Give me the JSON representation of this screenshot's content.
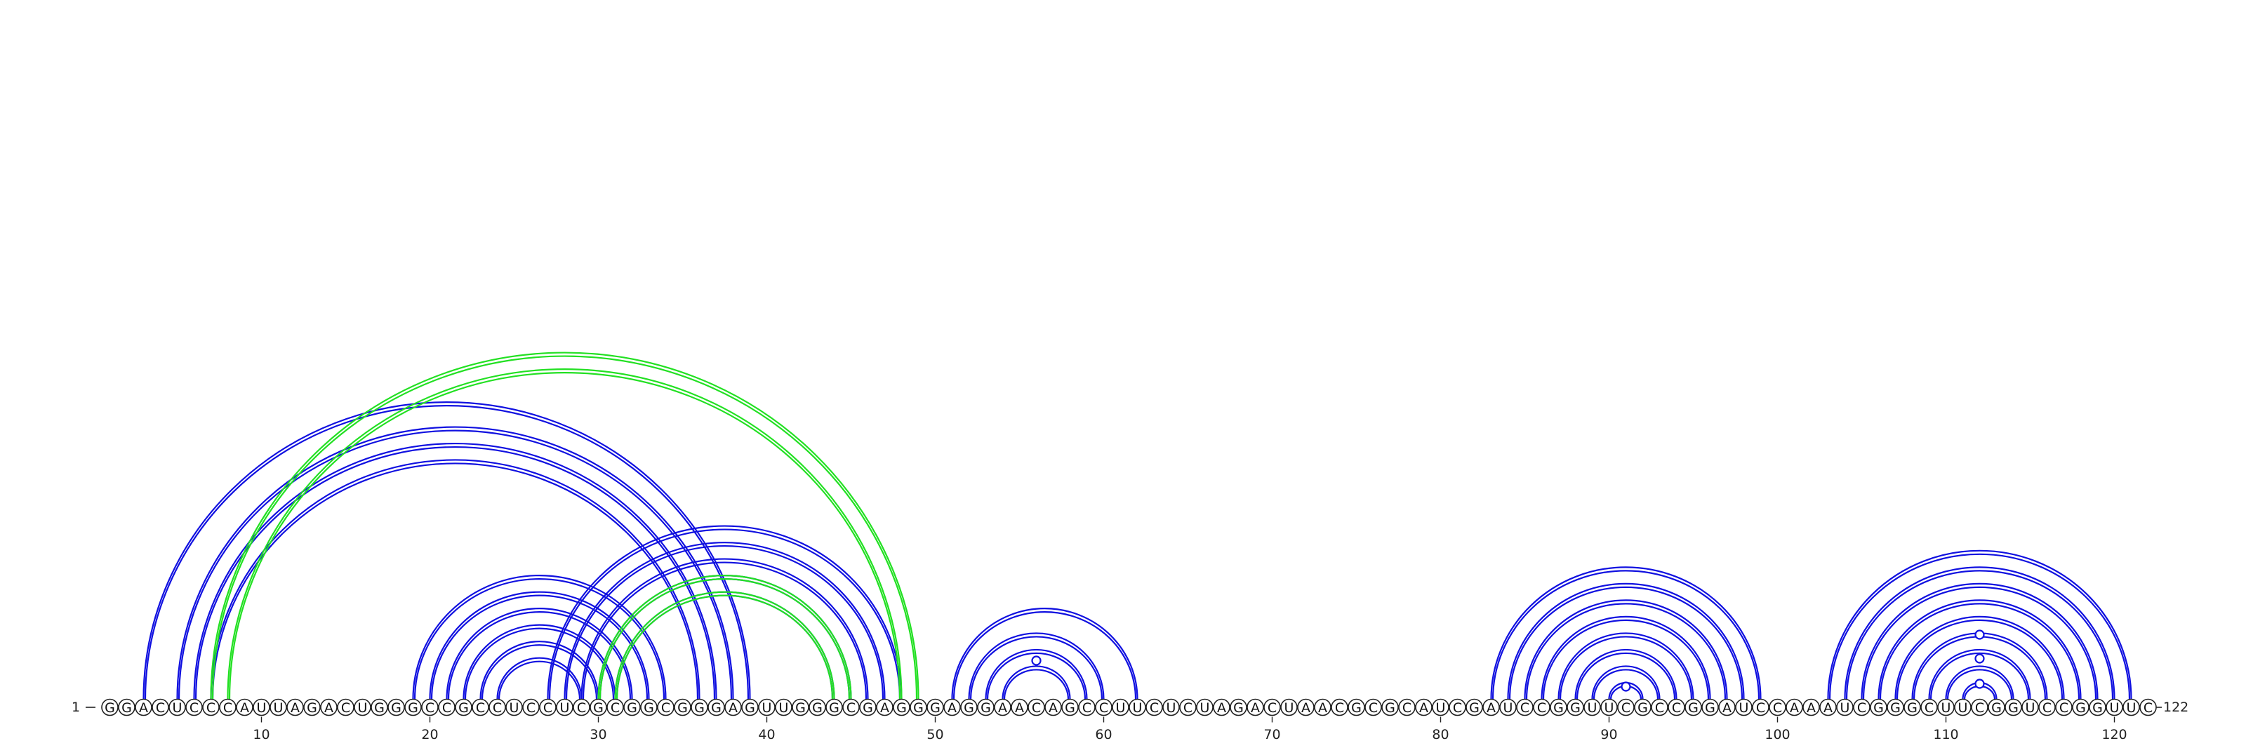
{
  "title": "RNA secondary structure arc diagram",
  "colors": {
    "primary_helix": "#1010e0",
    "alternative_helix": "#22e022",
    "nucleotide_outline": "#222222",
    "background": "#ffffff"
  },
  "chart_data": {
    "type": "arc-diagram",
    "sequence": "GGACUCCCAUUAGACUGGGCCGCCUCCUCGCGGCGGGAGUUGGGCGAGGGAGGAACAGCCUUCUCUAGACUAACGCGCAUCGAUCCGGUUCGCCGGAUCCAAAUCGGGCUUCGGUCCGGUUC",
    "length": 122,
    "start_label": "1",
    "end_label": "122",
    "axis_ticks": [
      10,
      20,
      30,
      40,
      50,
      60,
      70,
      80,
      90,
      100,
      110,
      120
    ],
    "primary_pairs": [
      [
        3,
        39
      ],
      [
        5,
        38
      ],
      [
        6,
        37
      ],
      [
        7,
        36
      ],
      [
        19,
        34
      ],
      [
        20,
        33
      ],
      [
        21,
        32
      ],
      [
        22,
        31
      ],
      [
        23,
        30
      ],
      [
        24,
        29
      ],
      [
        27,
        48
      ],
      [
        28,
        47
      ],
      [
        29,
        46
      ],
      [
        30,
        45
      ],
      [
        31,
        44
      ],
      [
        51,
        62
      ],
      [
        52,
        60
      ],
      [
        53,
        59
      ],
      [
        54,
        58
      ],
      [
        83,
        99
      ],
      [
        84,
        98
      ],
      [
        85,
        97
      ],
      [
        86,
        96
      ],
      [
        87,
        95
      ],
      [
        88,
        94
      ],
      [
        89,
        93
      ],
      [
        90,
        92
      ],
      [
        103,
        121
      ],
      [
        104,
        120
      ],
      [
        105,
        119
      ],
      [
        106,
        118
      ],
      [
        107,
        117
      ],
      [
        108,
        116
      ],
      [
        109,
        115
      ],
      [
        110,
        114
      ],
      [
        111,
        113
      ]
    ],
    "alternative_pairs": [
      [
        7,
        49
      ],
      [
        8,
        48
      ],
      [
        30,
        45
      ],
      [
        31,
        44
      ]
    ],
    "loop_markers": [
      56,
      91,
      112,
      112,
      112
    ],
    "marker_heights": [
      55,
      18,
      92,
      58,
      22
    ]
  }
}
